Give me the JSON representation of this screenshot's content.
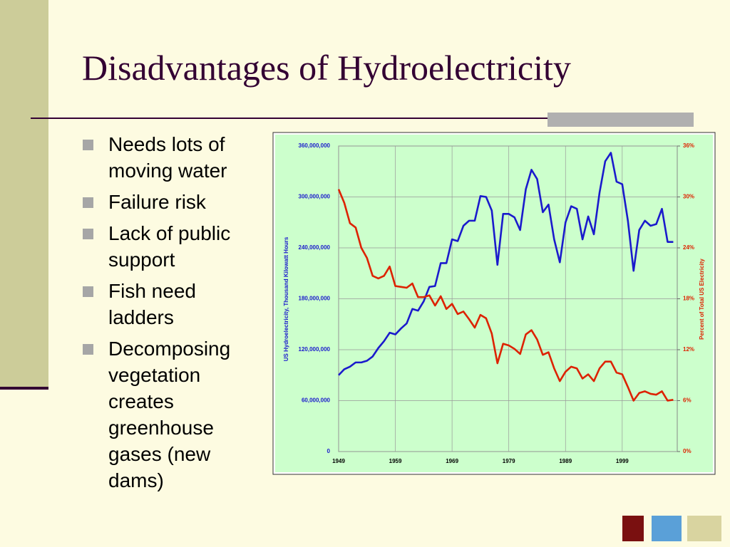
{
  "slide": {
    "title": "Disadvantages of Hydroelectricity",
    "bullets": [
      "Needs lots of moving water",
      "Failure risk",
      "Lack of public support",
      "Fish need ladders",
      "Decomposing vegetation creates greenhouse gases (new dams)"
    ]
  },
  "chart_data": {
    "type": "line",
    "y_label": "US Hydroelectricity, Thousand Kilowatt Hours",
    "y2_label": "Percent of Total US Electricity",
    "x": [
      1949,
      1950,
      1951,
      1952,
      1953,
      1954,
      1955,
      1956,
      1957,
      1958,
      1959,
      1960,
      1961,
      1962,
      1963,
      1964,
      1965,
      1966,
      1967,
      1968,
      1969,
      1970,
      1971,
      1972,
      1973,
      1974,
      1975,
      1976,
      1977,
      1978,
      1979,
      1980,
      1981,
      1982,
      1983,
      1984,
      1985,
      1986,
      1987,
      1988,
      1989,
      1990,
      1991,
      1992,
      1993,
      1994,
      1995,
      1996,
      1997,
      1998,
      1999,
      2000,
      2001,
      2002,
      2003,
      2004,
      2005,
      2006,
      2007,
      2008
    ],
    "series": [
      {
        "color": "#1a1acc",
        "axis": "y",
        "values": [
          90000000,
          97000000,
          100000000,
          105000000,
          105000000,
          107000000,
          112000000,
          122000000,
          130000000,
          140000000,
          138000000,
          145000000,
          151000000,
          168000000,
          166000000,
          177000000,
          194000000,
          195000000,
          222000000,
          222000000,
          250000000,
          248000000,
          266000000,
          272000000,
          272000000,
          301000000,
          300000000,
          284000000,
          220000000,
          280000000,
          280000000,
          276000000,
          261000000,
          309000000,
          332000000,
          321000000,
          282000000,
          291000000,
          250000000,
          223000000,
          270000000,
          289000000,
          286000000,
          250000000,
          277000000,
          256000000,
          305000000,
          342000000,
          352000000,
          318000000,
          315000000,
          272000000,
          213000000,
          261000000,
          272000000,
          266000000,
          268000000,
          286000000,
          247000000,
          247000000
        ]
      },
      {
        "color": "#dd2200",
        "axis": "y2",
        "values": [
          30.9,
          29.3,
          26.9,
          26.4,
          24.0,
          22.8,
          20.7,
          20.4,
          20.7,
          21.8,
          19.5,
          19.4,
          19.3,
          19.8,
          18.2,
          18.2,
          18.4,
          17.2,
          18.3,
          16.8,
          17.4,
          16.2,
          16.5,
          15.6,
          14.6,
          16.1,
          15.7,
          13.9,
          10.4,
          12.7,
          12.5,
          12.1,
          11.5,
          13.8,
          14.3,
          13.2,
          11.4,
          11.7,
          9.8,
          8.3,
          9.4,
          10.0,
          9.8,
          8.6,
          9.1,
          8.3,
          9.8,
          10.6,
          10.6,
          9.3,
          9.1,
          7.6,
          6.0,
          6.9,
          7.1,
          6.8,
          6.7,
          7.1,
          6.0,
          6.1
        ]
      }
    ],
    "xlim": [
      1949,
      2008.7
    ],
    "xticks": [
      1949,
      1959,
      1969,
      1979,
      1989,
      1999
    ],
    "ylim": [
      0,
      360000000
    ],
    "yticks": [
      0,
      {
        "value": 60000000,
        "label": "60,000,000"
      },
      {
        "value": 120000000,
        "label": "120,000,000"
      },
      {
        "value": 180000000,
        "label": "180,000,000"
      },
      {
        "value": 240000000,
        "label": "240,000,000"
      },
      {
        "value": 300000000,
        "label": "300,000,000"
      },
      {
        "value": 360000000,
        "label": "360,000,000"
      }
    ],
    "y2lim": [
      0,
      36
    ],
    "y2ticks": [
      {
        "value": 0,
        "label": "0%"
      },
      {
        "value": 6,
        "label": "6%"
      },
      {
        "value": 12,
        "label": "12%"
      },
      {
        "value": 18,
        "label": "18%"
      },
      {
        "value": 24,
        "label": "24%"
      },
      {
        "value": 30,
        "label": "30%"
      },
      {
        "value": 36,
        "label": "36%"
      }
    ],
    "grid": true
  }
}
